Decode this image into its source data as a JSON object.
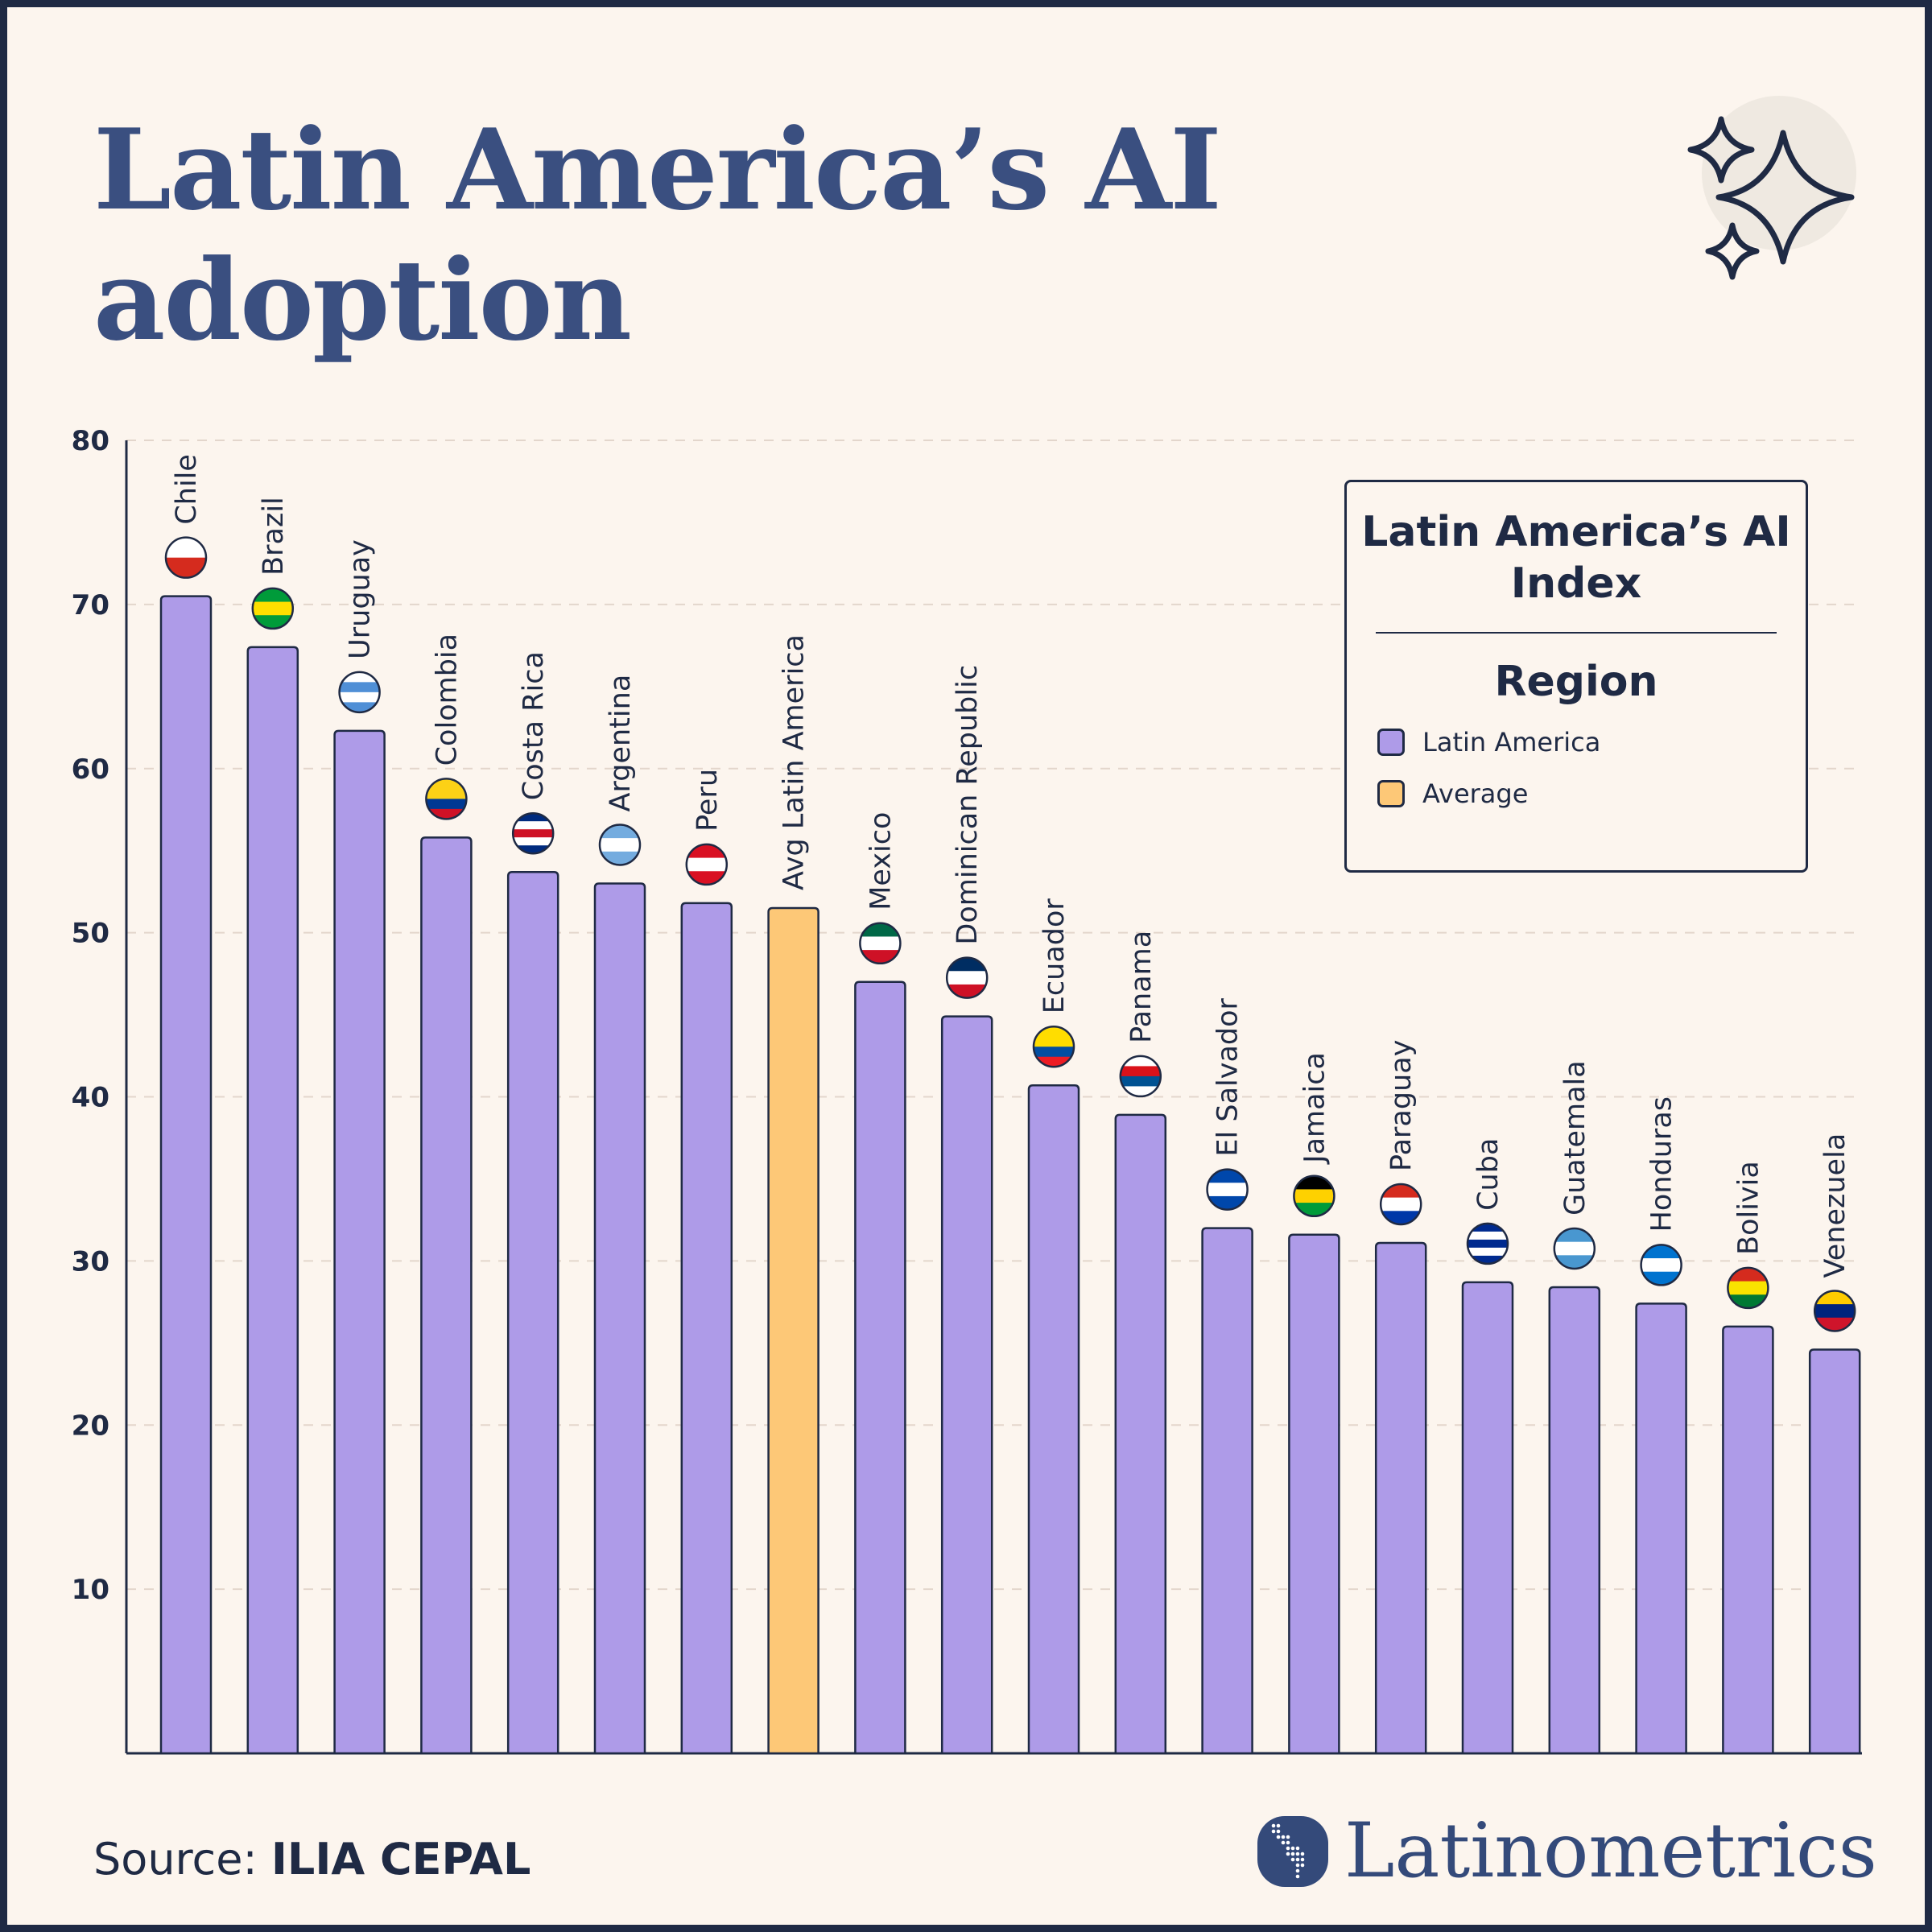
{
  "title_line1": "Latin America’s AI",
  "title_line2": "adoption",
  "source_label": "Source:",
  "source_value": "ILIA CEPAL",
  "brand": "Latinometrics",
  "legend": {
    "title": "Latin America’s AI Index",
    "subtitle": "Region",
    "items": [
      {
        "label": "Latin America",
        "color": "#ae9be8"
      },
      {
        "label": "Average",
        "color": "#fdc877"
      }
    ]
  },
  "colors": {
    "title": "#3a4f80",
    "ink": "#1f2a44",
    "grid": "#e3d6cc",
    "background": "#fcf5ee"
  },
  "chart_data": {
    "type": "bar",
    "title": "Latin America’s AI adoption",
    "xlabel": "",
    "ylabel": "",
    "ylim": [
      0,
      80
    ],
    "yticks": [
      10,
      20,
      30,
      40,
      50,
      60,
      70,
      80
    ],
    "grid": true,
    "legend_position": "top-right",
    "categories": [
      "Chile",
      "Brazil",
      "Uruguay",
      "Colombia",
      "Costa Rica",
      "Argentina",
      "Peru",
      "Avg Latin America",
      "Mexico",
      "Dominican Republic",
      "Ecuador",
      "Panama",
      "El Salvador",
      "Jamaica",
      "Paraguay",
      "Cuba",
      "Guatemala",
      "Honduras",
      "Bolivia",
      "Venezuela"
    ],
    "values": [
      70.5,
      67.4,
      62.3,
      55.8,
      53.7,
      53.0,
      51.8,
      51.5,
      47.0,
      44.9,
      40.7,
      38.9,
      32.0,
      31.6,
      31.1,
      28.7,
      28.4,
      27.4,
      26.0,
      24.6
    ],
    "groups": [
      "Latin America",
      "Latin America",
      "Latin America",
      "Latin America",
      "Latin America",
      "Latin America",
      "Latin America",
      "Average",
      "Latin America",
      "Latin America",
      "Latin America",
      "Latin America",
      "Latin America",
      "Latin America",
      "Latin America",
      "Latin America",
      "Latin America",
      "Latin America",
      "Latin America",
      "Latin America"
    ],
    "flags": [
      [
        "#ffffff",
        "#d52b1e"
      ],
      [
        "#009b3a",
        "#fedf00",
        "#009b3a"
      ],
      [
        "#ffffff",
        "#4f8fd6",
        "#ffffff",
        "#4f8fd6"
      ],
      [
        "#fcd116",
        "#fcd116",
        "#003893",
        "#ce1126"
      ],
      [
        "#002b7f",
        "#ffffff",
        "#ce1126",
        "#ffffff",
        "#002b7f"
      ],
      [
        "#74acdf",
        "#ffffff",
        "#74acdf"
      ],
      [
        "#d91023",
        "#ffffff",
        "#d91023"
      ],
      null,
      [
        "#006847",
        "#ffffff",
        "#ce1126"
      ],
      [
        "#002d62",
        "#ffffff",
        "#ce1126"
      ],
      [
        "#ffdd00",
        "#ffdd00",
        "#034ea2",
        "#ed1c24"
      ],
      [
        "#ffffff",
        "#da121a",
        "#005293",
        "#ffffff"
      ],
      [
        "#0047ab",
        "#ffffff",
        "#0047ab"
      ],
      [
        "#000000",
        "#fed100",
        "#009b3a"
      ],
      [
        "#d52b1e",
        "#ffffff",
        "#0038a8"
      ],
      [
        "#002a8f",
        "#ffffff",
        "#002a8f",
        "#ffffff",
        "#002a8f"
      ],
      [
        "#4997d0",
        "#ffffff",
        "#4997d0"
      ],
      [
        "#0073cf",
        "#ffffff",
        "#0073cf"
      ],
      [
        "#d52b1e",
        "#f9e300",
        "#007934"
      ],
      [
        "#ffcc00",
        "#00247d",
        "#cf142b"
      ]
    ]
  }
}
